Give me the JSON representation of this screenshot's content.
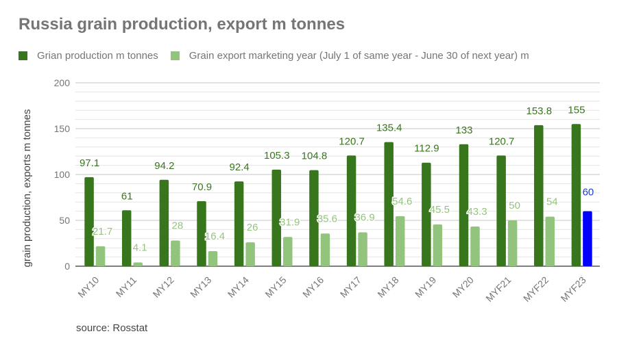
{
  "chart_data": {
    "type": "bar",
    "title": "Russia grain production, export m tonnes",
    "xlabel": "",
    "ylabel": "grain production, exports m tonnes",
    "ylim": [
      0,
      200
    ],
    "yticks": [
      0,
      50,
      100,
      150,
      200
    ],
    "minor_gridline_step": 10,
    "grid": true,
    "legend_position": "top-left",
    "categories": [
      "MY10",
      "MY11",
      "MY12",
      "MY13",
      "MY14",
      "MY15",
      "MY16",
      "MY17",
      "MY18",
      "MY19",
      "MY20",
      "MYF21",
      "MYF22",
      "MYF23"
    ],
    "series": [
      {
        "name": "Grian production m tonnes",
        "color": "#38761d",
        "label_color": "#38761d",
        "values": [
          97.1,
          61,
          94.2,
          70.9,
          92.4,
          105.3,
          104.8,
          120.7,
          135.4,
          112.9,
          133,
          120.7,
          153.8,
          155
        ],
        "labels": [
          "97.1",
          "61",
          "94.2",
          "70.9",
          "92.4",
          "105.3",
          "104.8",
          "120.7",
          "135.4",
          "112.9",
          "133",
          "120.7",
          "153.8",
          "155"
        ]
      },
      {
        "name": "Grain export marketing year (July 1 of same year - June 30 of next year) m",
        "color": "#93c47d",
        "label_color": "#93c47d",
        "values": [
          21.7,
          4.1,
          28,
          16.4,
          26,
          31.9,
          35.6,
          36.9,
          54.6,
          45.5,
          43.3,
          50,
          54,
          60
        ],
        "labels": [
          "21.7",
          "4.1",
          "28",
          "16.4",
          "26",
          "31.9",
          "35.6",
          "36.9",
          "54.6",
          "45.5",
          "43.3",
          "50",
          "54",
          "60"
        ],
        "highlight": {
          "index": 13,
          "color": "#0000ff",
          "label_color": "#1a3fc8"
        }
      }
    ],
    "source": "source: Rosstat"
  }
}
